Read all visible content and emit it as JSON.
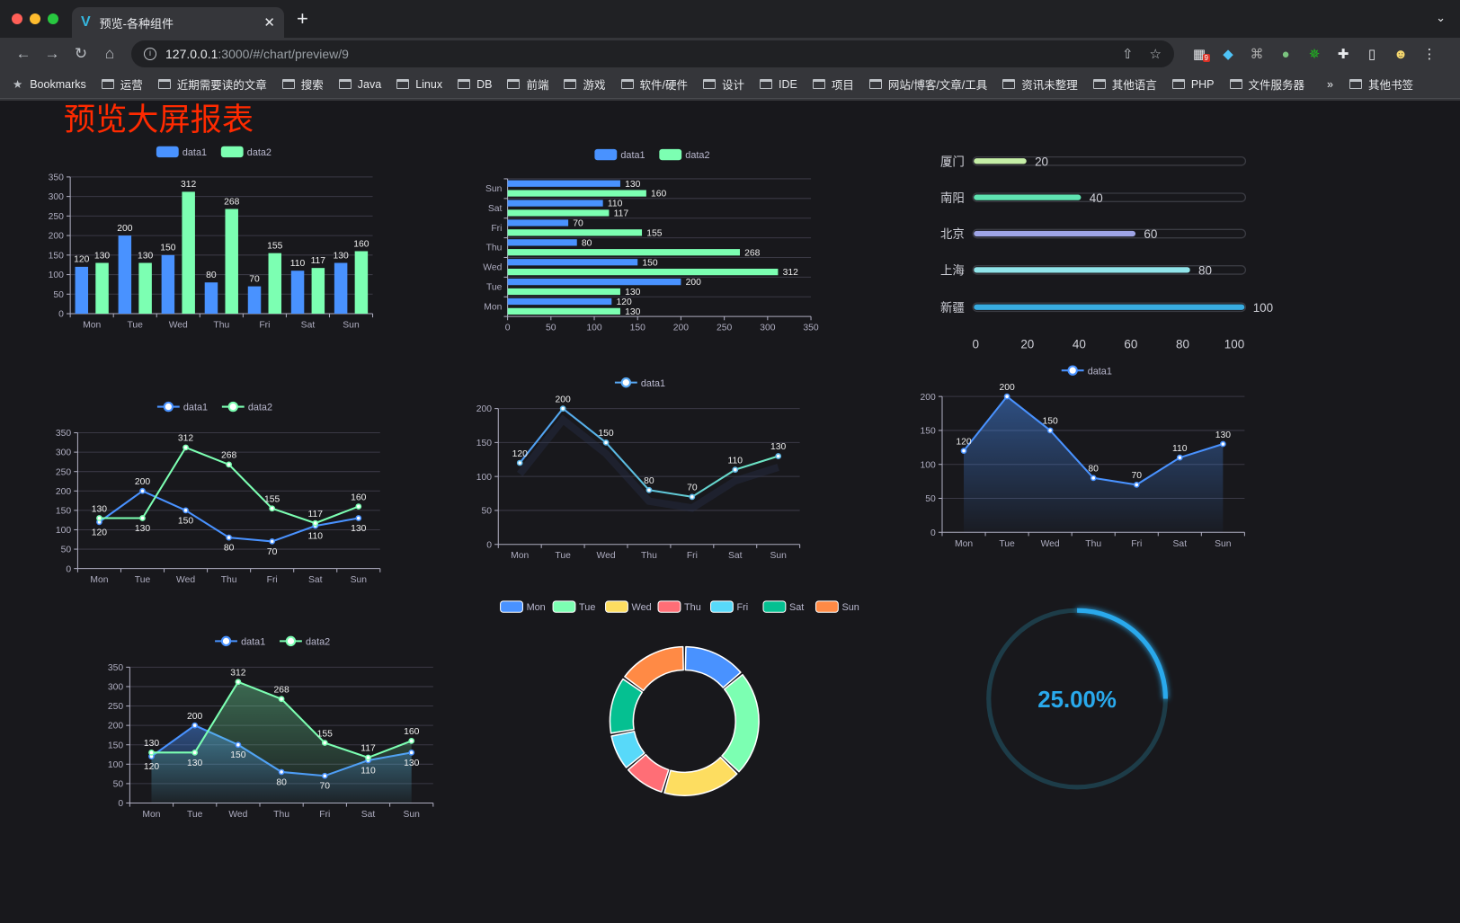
{
  "browser": {
    "tab_title": "预览-各种组件",
    "url_host": "127.0.0.1",
    "url_rest": ":3000/#/chart/preview/9",
    "bookmarks": [
      "Bookmarks",
      "运营",
      "近期需要读的文章",
      "搜索",
      "Java",
      "Linux",
      "DB",
      "前端",
      "游戏",
      "软件/硬件",
      "设计",
      "IDE",
      "项目",
      "网站/博客/文章/工具",
      "资讯未整理",
      "其他语言",
      "PHP",
      "文件服务器"
    ],
    "overflow": "»",
    "other_bookmarks": "其他书签",
    "extension_badge": "9"
  },
  "page": {
    "title": "预览大屏报表",
    "title_color": "#ff2a00"
  },
  "chart_data": [
    {
      "type": "bar",
      "orientation": "vertical",
      "categories": [
        "Mon",
        "Tue",
        "Wed",
        "Thu",
        "Fri",
        "Sat",
        "Sun"
      ],
      "yticks": [
        "0",
        "50",
        "100",
        "150",
        "200",
        "250",
        "300",
        "350"
      ],
      "ylim": [
        0,
        350
      ],
      "legend": "top",
      "series": [
        {
          "name": "data1",
          "values": [
            120,
            200,
            150,
            80,
            70,
            110,
            130
          ],
          "color": "#4992ff"
        },
        {
          "name": "data2",
          "values": [
            130,
            130,
            312,
            268,
            155,
            117,
            160
          ],
          "color": "#7cffb2"
        }
      ]
    },
    {
      "type": "bar",
      "orientation": "horizontal",
      "categories": [
        "Mon",
        "Tue",
        "Wed",
        "Thu",
        "Fri",
        "Sat",
        "Sun"
      ],
      "xticks": [
        "0",
        "50",
        "100",
        "150",
        "200",
        "250",
        "300",
        "350"
      ],
      "xlim": [
        0,
        350
      ],
      "legend": "top",
      "series": [
        {
          "name": "data1",
          "values": [
            120,
            200,
            150,
            80,
            70,
            110,
            130
          ],
          "color": "#4992ff"
        },
        {
          "name": "data2",
          "values": [
            130,
            130,
            312,
            268,
            155,
            117,
            160
          ],
          "color": "#7cffb2"
        }
      ]
    },
    {
      "type": "bar",
      "orientation": "progress",
      "categories": [
        "厦门",
        "南阳",
        "北京",
        "上海",
        "新疆"
      ],
      "values": [
        20,
        40,
        60,
        80,
        100
      ],
      "colors": [
        "#c5eea6",
        "#5fe3b1",
        "#9ea4e6",
        "#90e4ea",
        "#38ace0"
      ],
      "xticks": [
        "0",
        "20",
        "40",
        "60",
        "80",
        "100"
      ],
      "xlim": [
        0,
        100
      ]
    },
    {
      "type": "line",
      "categories": [
        "Mon",
        "Tue",
        "Wed",
        "Thu",
        "Fri",
        "Sat",
        "Sun"
      ],
      "yticks": [
        "0",
        "50",
        "100",
        "150",
        "200",
        "250",
        "300",
        "350"
      ],
      "ylim": [
        0,
        350
      ],
      "legend": "top",
      "series": [
        {
          "name": "data1",
          "values": [
            120,
            200,
            150,
            80,
            70,
            110,
            130
          ],
          "color": "#4992ff"
        },
        {
          "name": "data2",
          "values": [
            130,
            130,
            312,
            268,
            155,
            117,
            160
          ],
          "color": "#7cffb2"
        }
      ]
    },
    {
      "type": "line",
      "categories": [
        "Mon",
        "Tue",
        "Wed",
        "Thu",
        "Fri",
        "Sat",
        "Sun"
      ],
      "yticks": [
        "0",
        "50",
        "100",
        "150",
        "200"
      ],
      "ylim": [
        0,
        200
      ],
      "legend": "top",
      "series": [
        {
          "name": "data1",
          "values": [
            120,
            200,
            150,
            80,
            70,
            110,
            130
          ],
          "color": "#58a9f5"
        }
      ]
    },
    {
      "type": "area",
      "categories": [
        "Mon",
        "Tue",
        "Wed",
        "Thu",
        "Fri",
        "Sat",
        "Sun"
      ],
      "yticks": [
        "0",
        "50",
        "100",
        "150",
        "200"
      ],
      "ylim": [
        0,
        200
      ],
      "legend": "top",
      "series": [
        {
          "name": "data1",
          "values": [
            120,
            200,
            150,
            80,
            70,
            110,
            130
          ],
          "color": "#4992ff"
        }
      ]
    },
    {
      "type": "area",
      "categories": [
        "Mon",
        "Tue",
        "Wed",
        "Thu",
        "Fri",
        "Sat",
        "Sun"
      ],
      "yticks": [
        "0",
        "50",
        "100",
        "150",
        "200",
        "250",
        "300",
        "350"
      ],
      "ylim": [
        0,
        350
      ],
      "legend": "top",
      "series": [
        {
          "name": "data1",
          "values": [
            120,
            200,
            150,
            80,
            70,
            110,
            130
          ],
          "color": "#4992ff"
        },
        {
          "name": "data2",
          "values": [
            130,
            130,
            312,
            268,
            155,
            117,
            160
          ],
          "color": "#7cffb2"
        }
      ]
    },
    {
      "type": "pie",
      "donut": true,
      "legend": "top",
      "categories": [
        "Mon",
        "Tue",
        "Wed",
        "Thu",
        "Fri",
        "Sat",
        "Sun"
      ],
      "values": [
        120,
        200,
        150,
        80,
        70,
        110,
        130
      ],
      "colors": [
        "#4992ff",
        "#7cffb2",
        "#fddd60",
        "#ff6e76",
        "#58d9f9",
        "#05c091",
        "#ff8a45"
      ]
    },
    {
      "type": "gauge",
      "value": 25,
      "label": "25.00%",
      "color": "#29a9ec",
      "track_color": "#1d3c48"
    }
  ]
}
